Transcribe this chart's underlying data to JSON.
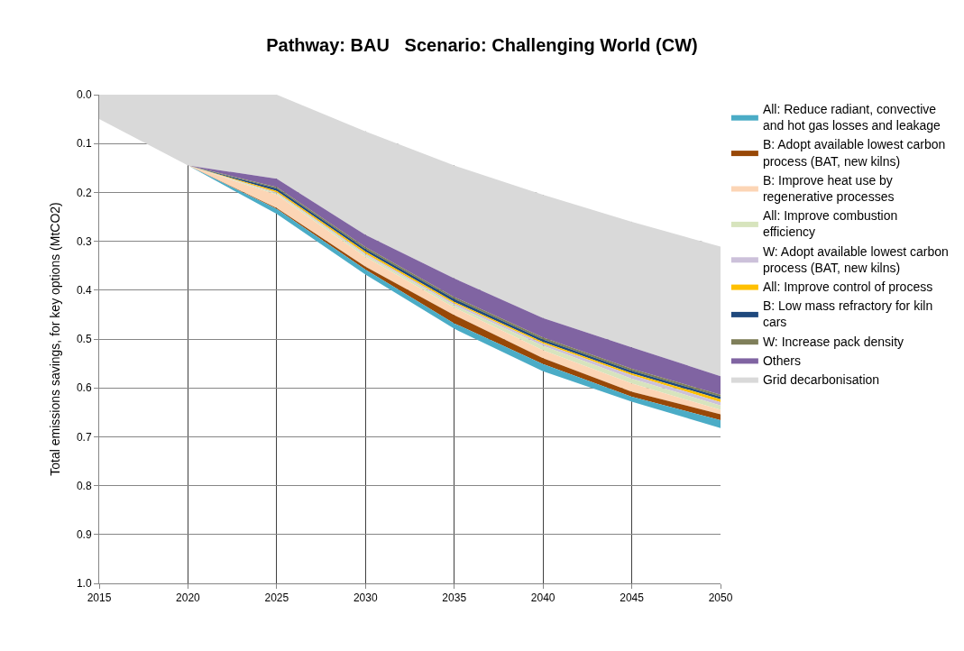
{
  "chart_data": {
    "type": "area",
    "stacked": true,
    "title": "Pathway: BAU   Scenario: Challenging World (CW)",
    "ylabel": "Total emissions savings, for key options (MtCO2)",
    "x": [
      2015,
      2020,
      2025,
      2030,
      2035,
      2040,
      2045,
      2050
    ],
    "xlim": [
      2015,
      2050
    ],
    "xticks": [
      2015,
      2020,
      2025,
      2030,
      2035,
      2040,
      2045,
      2050
    ],
    "ylim": [
      1.0,
      0.0
    ],
    "yticks": [
      {
        "value": 0,
        "label": "0.0"
      },
      0.1,
      0.2,
      0.3,
      0.4,
      0.5,
      0.6,
      0.7,
      0.8,
      0.9,
      {
        "value": 1,
        "label": "1.0"
      }
    ],
    "grid": true,
    "legend": "right",
    "series": [
      {
        "color": "#ffffff",
        "values": [
          0,
          0,
          0,
          0.075,
          0.145,
          0.205,
          0.26,
          0.311
        ]
      },
      {
        "name": "Grid decarbonisation",
        "color": "#d9d9d9",
        "values": [
          0.05,
          0.145,
          0.172,
          0.212,
          0.231,
          0.252,
          0.257,
          0.265
        ]
      },
      {
        "name": "Others",
        "color": "#8064a2",
        "values": [
          0,
          0,
          0.017,
          0.025,
          0.038,
          0.04,
          0.044,
          0.038
        ]
      },
      {
        "name": "W: Increase pack density",
        "color": "#7f7f5a",
        "values": [
          0,
          0,
          0.003,
          0.004,
          0.004,
          0.004,
          0.004,
          0.004
        ]
      },
      {
        "name": "B: Low mass refractory for kiln cars",
        "color": "#1f497d",
        "values": [
          0,
          0,
          0.005,
          0.005,
          0.006,
          0.005,
          0.005,
          0.005
        ]
      },
      {
        "name": "All: Improve control of process",
        "color": "#ffc000",
        "values": [
          0,
          0,
          0.003,
          0.004,
          0.003,
          0.003,
          0.004,
          0.006
        ]
      },
      {
        "name": "W: Adopt available lowest carbon process (BAT, new kilns)",
        "color": "#ccc1da",
        "values": [
          0,
          0,
          0.002,
          0.003,
          0.004,
          0.005,
          0.007,
          0.007
        ]
      },
      {
        "name": "All: Improve combustion efficiency",
        "color": "#d7e4bd",
        "values": [
          0,
          0,
          0.003,
          0.004,
          0.005,
          0.009,
          0.01,
          0.009
        ]
      },
      {
        "name": "B: Improve heat use by regenerative processes",
        "color": "#fcd5b5",
        "values": [
          0,
          0,
          0.027,
          0.02,
          0.015,
          0.016,
          0.017,
          0.009
        ]
      },
      {
        "name": "B: Adopt available lowest carbon process (BAT, new kilns)",
        "color": "#984807",
        "values": [
          0,
          0,
          0.002,
          0.006,
          0.017,
          0.012,
          0.01,
          0.012
        ]
      },
      {
        "name": "All: Reduce radiant, convective and hot gas losses and leakage",
        "color": "#4bacc6",
        "values": [
          0,
          0,
          0.01,
          0.01,
          0.011,
          0.015,
          0.01,
          0.016
        ]
      }
    ]
  }
}
